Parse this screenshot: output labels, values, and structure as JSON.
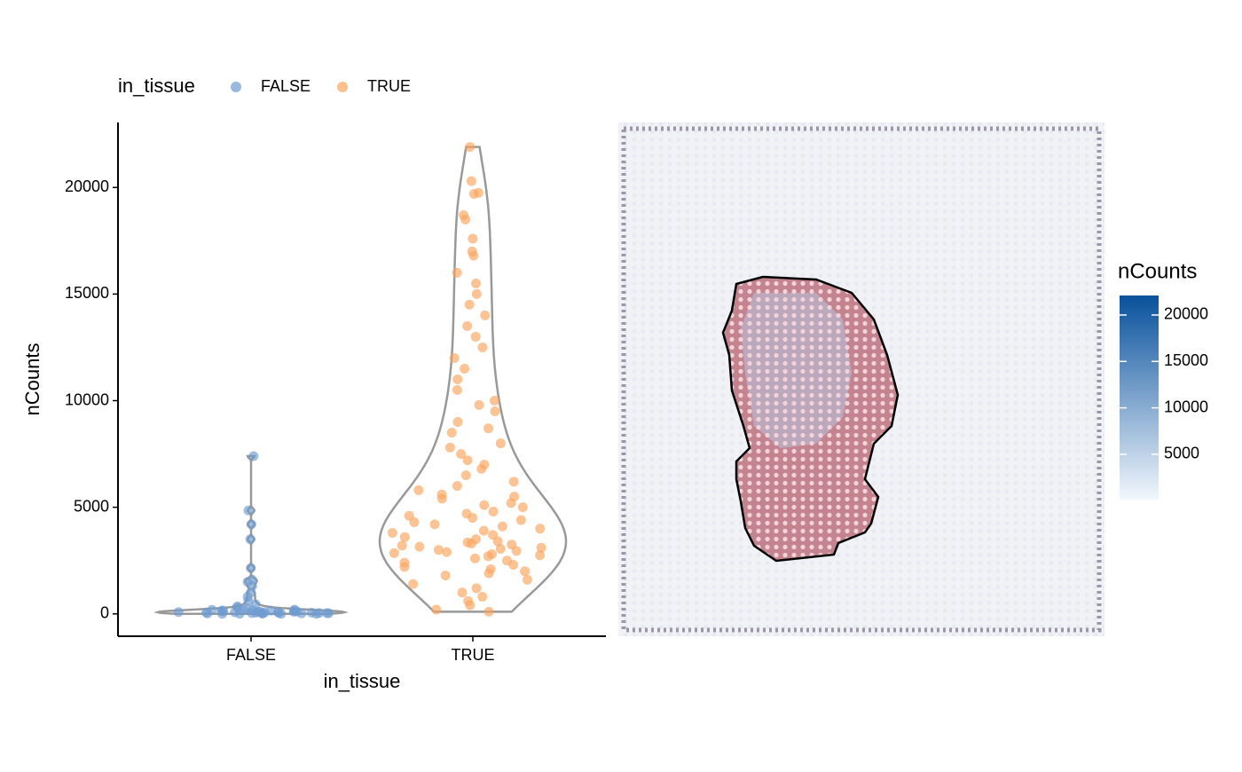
{
  "chart_data": [
    {
      "type": "violin",
      "legend_title": "in_tissue",
      "xlabel": "in_tissue",
      "ylabel": "nCounts",
      "categories": [
        "FALSE",
        "TRUE"
      ],
      "series": [
        {
          "name": "FALSE",
          "color": "#6e9bd0",
          "values": [
            7400,
            4850,
            4200,
            3500,
            2150,
            1600,
            1500,
            1300,
            1000,
            800,
            600,
            450,
            350,
            300,
            250,
            200,
            180,
            150,
            120,
            100,
            90,
            80,
            70,
            60,
            50,
            40,
            30,
            20,
            10,
            0,
            0,
            0,
            5,
            15,
            25,
            35,
            45,
            55,
            65,
            75,
            85,
            95,
            110,
            130,
            140,
            160,
            170,
            190
          ]
        },
        {
          "name": "TRUE",
          "color": "#fba55c",
          "values": [
            21900,
            20300,
            19700,
            19750,
            18700,
            18500,
            17600,
            17000,
            16800,
            16000,
            15500,
            15000,
            14500,
            14000,
            13500,
            13000,
            12500,
            12000,
            11500,
            11000,
            10500,
            10000,
            9800,
            9500,
            9000,
            8700,
            8500,
            8000,
            7800,
            7500,
            7200,
            7000,
            6800,
            6500,
            6200,
            6000,
            5800,
            5600,
            5400,
            5200,
            5000,
            4800,
            4600,
            4500,
            4400,
            4200,
            4000,
            3900,
            3800,
            3600,
            3500,
            3400,
            3300,
            3200,
            3100,
            3000,
            2900,
            2800,
            2700,
            2600,
            2500,
            2400,
            2200,
            2000,
            1800,
            1600,
            1400,
            1200,
            1000,
            800,
            600,
            400,
            200,
            100,
            3050,
            2950,
            3150,
            2850,
            3250,
            2750,
            3350,
            3700,
            4100,
            2300,
            2100,
            1900,
            4300,
            4700,
            5100,
            5500
          ]
        }
      ],
      "ylim": [
        -1050,
        23050
      ],
      "yticks": [
        0,
        5000,
        10000,
        15000,
        20000
      ]
    },
    {
      "type": "spatial",
      "colorbar": {
        "title": "nCounts",
        "lim": [
          120,
          22100
        ],
        "ticks": [
          5000,
          10000,
          15000,
          20000
        ],
        "colors": [
          "#f2f7fd",
          "#08519c"
        ]
      }
    }
  ]
}
